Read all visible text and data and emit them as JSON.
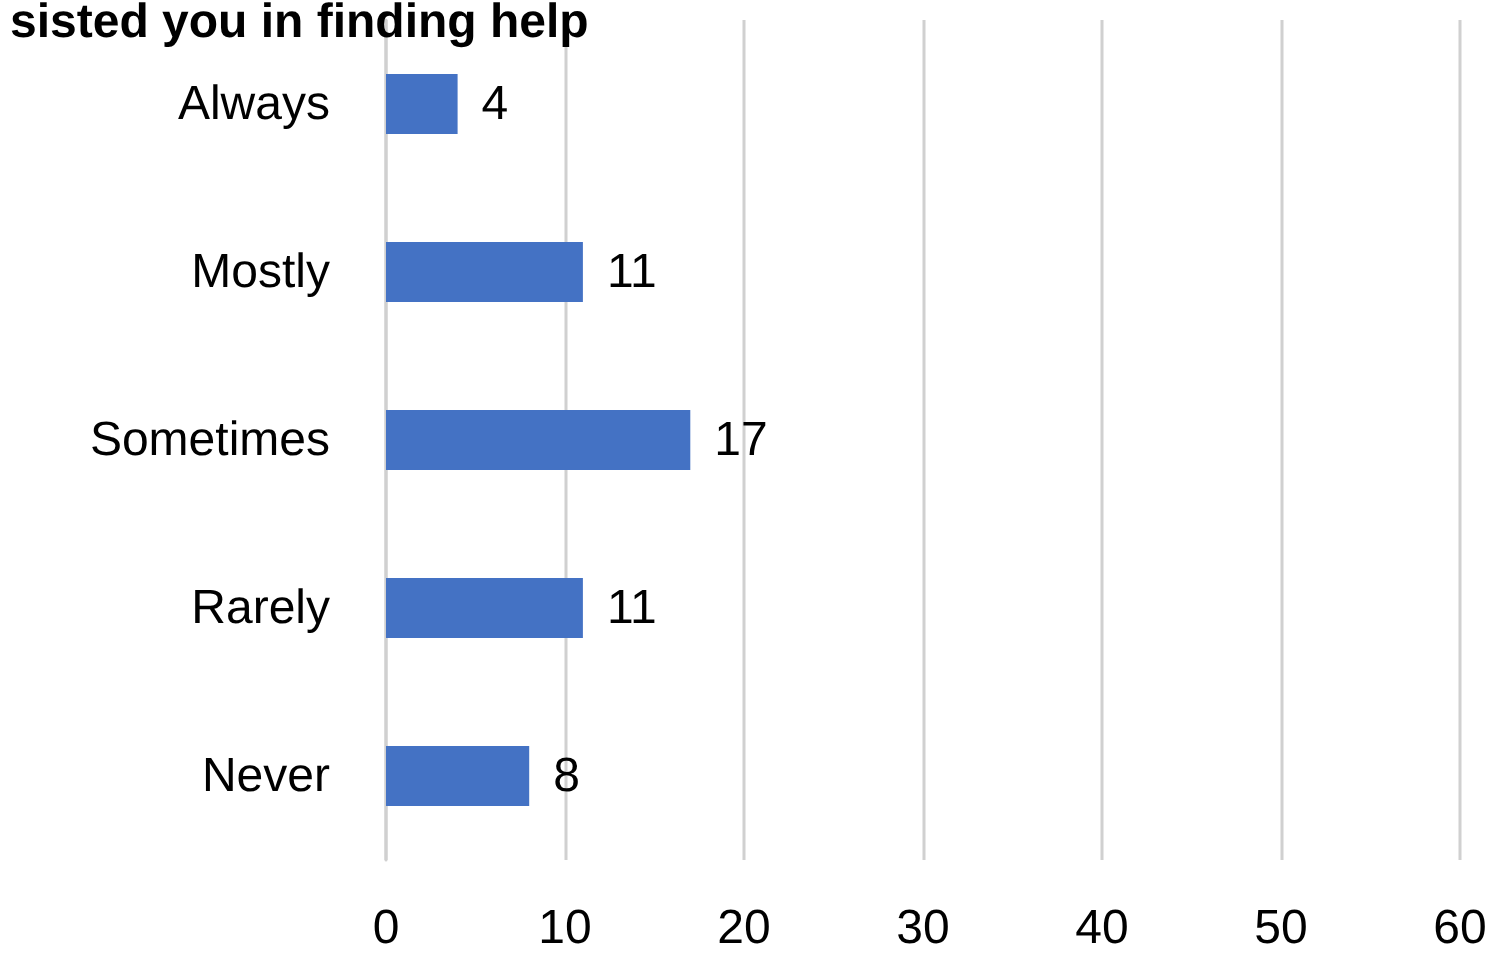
{
  "chart_data": {
    "type": "bar",
    "orientation": "horizontal",
    "title": "sisted you in finding help",
    "categories": [
      "Always",
      "Mostly",
      "Sometimes",
      "Rarely",
      "Never"
    ],
    "values": [
      4,
      11,
      17,
      11,
      8
    ],
    "color": "#4472c4",
    "xlim": [
      0,
      60
    ],
    "xticks": [
      0,
      10,
      20,
      30,
      40,
      50,
      60
    ],
    "grid": "x",
    "data_labels": true
  }
}
